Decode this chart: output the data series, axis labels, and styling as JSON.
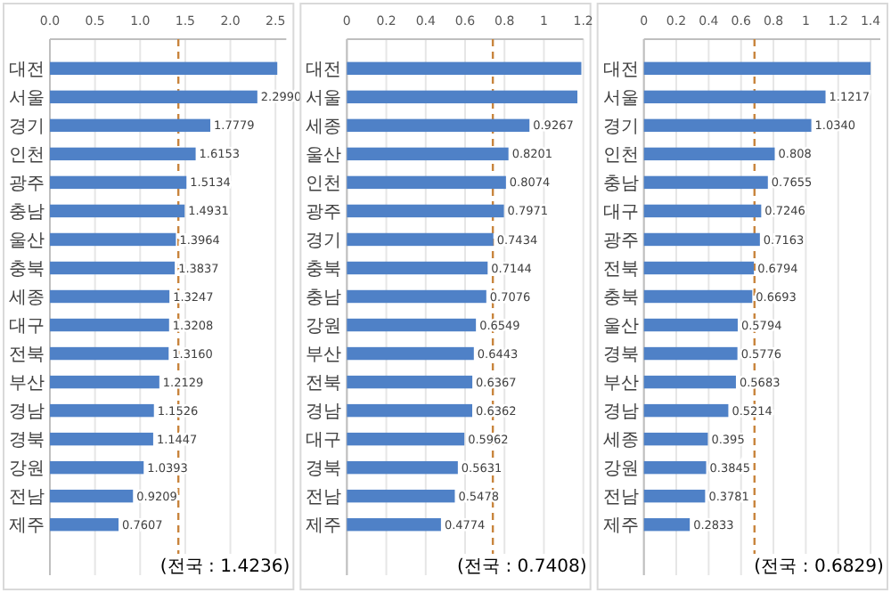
{
  "chart_data": [
    {
      "type": "bar",
      "orientation": "horizontal",
      "categories": [
        "대전",
        "서울",
        "경기",
        "인천",
        "광주",
        "충남",
        "울산",
        "충북",
        "세종",
        "대구",
        "전북",
        "부산",
        "경남",
        "경북",
        "강원",
        "전남",
        "제주"
      ],
      "values": [
        2.52,
        2.299,
        1.7779,
        1.6153,
        1.5134,
        1.4931,
        1.3964,
        1.3837,
        1.3247,
        1.3208,
        1.316,
        1.2129,
        1.1526,
        1.1447,
        1.0393,
        0.9209,
        0.7607
      ],
      "value_labels": [
        null,
        "2.2990",
        "1.7779",
        "1.6153",
        "1.5134",
        "1.4931",
        "1.3964",
        "1.3837",
        "1.3247",
        "1.3208",
        "1.3160",
        "1.2129",
        "1.1526",
        "1.1447",
        "1.0393",
        "0.9209",
        "0.7607"
      ],
      "color": "#4f81c7",
      "xlim": [
        0,
        2.62
      ],
      "xticks": [
        {
          "value": 0,
          "label": "0.0"
        },
        0.5,
        {
          "value": 1,
          "label": "1.0"
        },
        1.5,
        {
          "value": 2,
          "label": "2.0"
        },
        2.5
      ],
      "grid": "x",
      "ref_lines": [
        {
          "axis": "x",
          "value": 1.4236,
          "label": "(전국 : 1.4236)",
          "color": "#c8843c",
          "line_style": "dashed"
        }
      ]
    },
    {
      "type": "bar",
      "orientation": "horizontal",
      "categories": [
        "대전",
        "서울",
        "세종",
        "울산",
        "인천",
        "광주",
        "경기",
        "충북",
        "충남",
        "강원",
        "부산",
        "전북",
        "경남",
        "대구",
        "경북",
        "전남",
        "제주"
      ],
      "values": [
        1.19,
        1.17,
        0.9267,
        0.8201,
        0.8074,
        0.7971,
        0.7434,
        0.7144,
        0.7076,
        0.6549,
        0.6443,
        0.6367,
        0.6362,
        0.5962,
        0.5631,
        0.5478,
        0.4774
      ],
      "value_labels": [
        null,
        null,
        "0.9267",
        "0.8201",
        "0.8074",
        "0.7971",
        "0.7434",
        "0.7144",
        "0.7076",
        "0.6549",
        "0.6443",
        "0.6367",
        "0.6362",
        "0.5962",
        "0.5631",
        "0.5478",
        "0.4774"
      ],
      "color": "#4f81c7",
      "xlim": [
        0,
        1.2
      ],
      "xticks": [
        0,
        0.2,
        0.4,
        0.6,
        0.8,
        1,
        1.2
      ],
      "grid": "x",
      "ref_lines": [
        {
          "axis": "x",
          "value": 0.7408,
          "label": "(전국 : 0.7408)",
          "color": "#c8843c",
          "line_style": "dashed"
        }
      ]
    },
    {
      "type": "bar",
      "orientation": "horizontal",
      "categories": [
        "대전",
        "서울",
        "경기",
        "인천",
        "충남",
        "대구",
        "광주",
        "전북",
        "충북",
        "울산",
        "경북",
        "부산",
        "경남",
        "세종",
        "강원",
        "전남",
        "제주"
      ],
      "values": [
        1.4,
        1.1217,
        1.034,
        0.808,
        0.7655,
        0.7246,
        0.7163,
        0.6794,
        0.6693,
        0.5794,
        0.5776,
        0.5683,
        0.5214,
        0.395,
        0.3845,
        0.3781,
        0.2833
      ],
      "value_labels": [
        null,
        "1.1217",
        "1.0340",
        "0.808",
        "0.7655",
        "0.7246",
        "0.7163",
        "0.6794",
        "0.6693",
        "0.5794",
        "0.5776",
        "0.5683",
        "0.5214",
        "0.395",
        "0.3845",
        "0.3781",
        "0.2833"
      ],
      "color": "#4f81c7",
      "xlim": [
        0,
        1.46
      ],
      "xticks": [
        0,
        0.2,
        0.4,
        0.6,
        0.8,
        1,
        1.2,
        1.4
      ],
      "grid": "x",
      "ref_lines": [
        {
          "axis": "x",
          "value": 0.6829,
          "label": "(전국 : 0.6829)",
          "color": "#c8843c",
          "line_style": "dashed"
        }
      ]
    }
  ]
}
